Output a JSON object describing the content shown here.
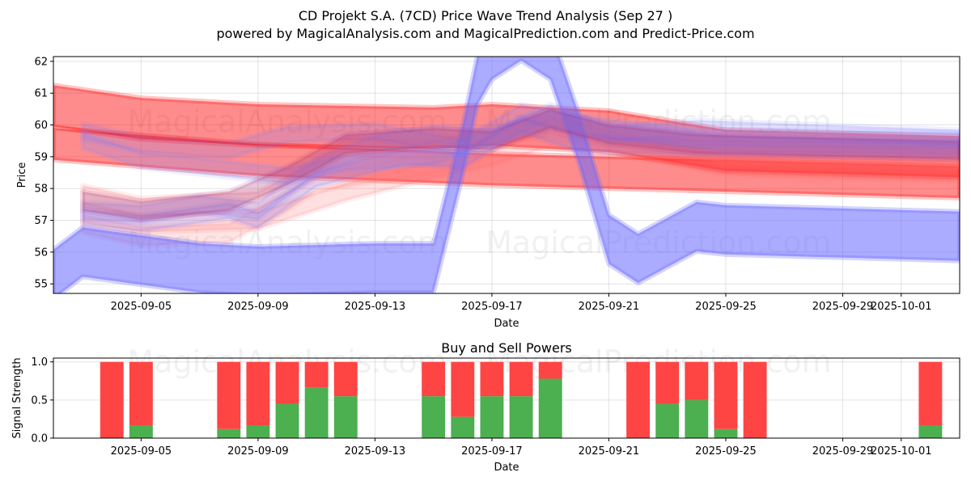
{
  "chart_data": [
    {
      "type": "area",
      "title_line1": "CD Projekt S.A. (7CD) Price Wave Trend Analysis (Sep 27 )",
      "title_line2": "powered by MagicalAnalysis.com and MagicalPrediction.com and Predict-Price.com",
      "xlabel": "Date",
      "ylabel": "Price",
      "ylim": [
        54.7,
        62.15
      ],
      "x_range": [
        "2025-09-02",
        "2025-10-03"
      ],
      "grid": true,
      "yticks": [
        55,
        56,
        57,
        58,
        59,
        60,
        61,
        62
      ],
      "xticks": [
        {
          "date": "2025-09-05",
          "label": "2025-09-05"
        },
        {
          "date": "2025-09-09",
          "label": "2025-09-09"
        },
        {
          "date": "2025-09-13",
          "label": "2025-09-13"
        },
        {
          "date": "2025-09-17",
          "label": "2025-09-17"
        },
        {
          "date": "2025-09-21",
          "label": "2025-09-21"
        },
        {
          "date": "2025-09-25",
          "label": "2025-09-25"
        },
        {
          "date": "2025-09-29",
          "label": "2025-09-29"
        },
        {
          "date": "2025-10-01",
          "label": "2025-10-01"
        }
      ],
      "bands": [
        {
          "name": "red-long-upper",
          "color": "#ff0000",
          "opacity": 0.45,
          "width": 1.3,
          "x": [
            "2025-09-02",
            "2025-09-05",
            "2025-09-09",
            "2025-09-15",
            "2025-09-17",
            "2025-09-21",
            "2025-09-25",
            "2025-10-03"
          ],
          "y": [
            60.6,
            60.2,
            60.0,
            59.9,
            60.0,
            59.8,
            59.2,
            59.0
          ]
        },
        {
          "name": "red-long-lower",
          "color": "#ff0000",
          "opacity": 0.45,
          "width": 1.0,
          "x": [
            "2025-09-02",
            "2025-09-09",
            "2025-09-17",
            "2025-09-21",
            "2025-09-25",
            "2025-10-03"
          ],
          "y": [
            59.4,
            58.9,
            58.6,
            58.5,
            58.4,
            58.2
          ]
        },
        {
          "name": "red-faint-1",
          "color": "#ff6666",
          "opacity": 0.22,
          "width": 0.6,
          "x": [
            "2025-09-03",
            "2025-09-05",
            "2025-09-09",
            "2025-09-11",
            "2025-09-12",
            "2025-09-15",
            "2025-09-17",
            "2025-09-19",
            "2025-09-22",
            "2025-09-25",
            "2025-10-03"
          ],
          "y": [
            57.8,
            57.4,
            57.6,
            58.6,
            59.3,
            59.2,
            59.7,
            60.0,
            59.3,
            58.7,
            58.5
          ]
        },
        {
          "name": "red-faint-2",
          "color": "#ff6666",
          "opacity": 0.2,
          "width": 0.55,
          "x": [
            "2025-09-03",
            "2025-09-05",
            "2025-09-09",
            "2025-09-12",
            "2025-09-15",
            "2025-09-17",
            "2025-09-19",
            "2025-09-22",
            "2025-09-25",
            "2025-10-03"
          ],
          "y": [
            57.2,
            56.9,
            57.0,
            57.9,
            58.6,
            59.0,
            59.6,
            59.2,
            58.8,
            58.6
          ]
        },
        {
          "name": "red-faint-3",
          "color": "#ff7777",
          "opacity": 0.2,
          "width": 0.6,
          "x": [
            "2025-09-03",
            "2025-09-05",
            "2025-09-08",
            "2025-09-10",
            "2025-09-11",
            "2025-09-13",
            "2025-09-16",
            "2025-09-18",
            "2025-09-21",
            "2025-09-25",
            "2025-10-03"
          ],
          "y": [
            56.9,
            56.5,
            56.6,
            57.6,
            58.2,
            58.5,
            58.9,
            59.9,
            59.6,
            59.1,
            58.9
          ]
        },
        {
          "name": "blue-main",
          "color": "#6666ff",
          "opacity": 0.55,
          "width": 1.55,
          "x": [
            "2025-09-02",
            "2025-09-03",
            "2025-09-07",
            "2025-09-09",
            "2025-09-13",
            "2025-09-15",
            "2025-09-16",
            "2025-09-16.5",
            "2025-09-17",
            "2025-09-18",
            "2025-09-19",
            "2025-09-20",
            "2025-09-21",
            "2025-09-22",
            "2025-09-24",
            "2025-09-25",
            "2025-10-03"
          ],
          "y": [
            55.3,
            56.0,
            55.5,
            55.4,
            55.5,
            55.5,
            59.2,
            61.4,
            62.2,
            62.8,
            62.2,
            59.5,
            56.4,
            55.8,
            56.8,
            56.7,
            56.5
          ]
        },
        {
          "name": "blue-faint-1",
          "color": "#8888ff",
          "opacity": 0.25,
          "width": 0.5,
          "x": [
            "2025-09-03",
            "2025-09-05",
            "2025-09-08",
            "2025-09-10",
            "2025-09-12",
            "2025-09-15",
            "2025-09-17",
            "2025-09-19",
            "2025-09-21",
            "2025-09-24",
            "2025-10-03"
          ],
          "y": [
            59.5,
            58.9,
            58.6,
            58.4,
            58.8,
            59.0,
            59.6,
            60.4,
            59.7,
            59.9,
            59.6
          ]
        },
        {
          "name": "blue-faint-2",
          "color": "#8888ff",
          "opacity": 0.25,
          "width": 0.55,
          "x": [
            "2025-09-03",
            "2025-09-05",
            "2025-09-07",
            "2025-09-09",
            "2025-09-11",
            "2025-09-13",
            "2025-09-15",
            "2025-09-17",
            "2025-09-19",
            "2025-09-21",
            "2025-09-24",
            "2025-10-03"
          ],
          "y": [
            57.3,
            57.2,
            57.5,
            57.3,
            58.7,
            59.4,
            59.7,
            59.6,
            60.2,
            59.9,
            59.6,
            59.5
          ]
        },
        {
          "name": "blue-faint-3",
          "color": "#7777ff",
          "opacity": 0.22,
          "width": 0.5,
          "x": [
            "2025-09-03",
            "2025-09-05",
            "2025-09-08",
            "2025-09-09",
            "2025-09-11",
            "2025-09-14",
            "2025-09-16",
            "2025-09-18",
            "2025-09-20",
            "2025-09-24",
            "2025-10-03"
          ],
          "y": [
            57.1,
            56.9,
            57.3,
            57.0,
            58.3,
            59.0,
            58.9,
            60.0,
            59.4,
            59.3,
            59.2
          ]
        },
        {
          "name": "blue-faint-4",
          "color": "#7777ff",
          "opacity": 0.2,
          "width": 0.5,
          "x": [
            "2025-09-03",
            "2025-09-05",
            "2025-09-08",
            "2025-09-10",
            "2025-09-13",
            "2025-09-16",
            "2025-09-18",
            "2025-09-21",
            "2025-09-25",
            "2025-10-03"
          ],
          "y": [
            59.8,
            59.4,
            59.2,
            59.7,
            59.8,
            59.3,
            60.4,
            59.8,
            59.4,
            59.3
          ]
        },
        {
          "name": "purple-mix",
          "color": "#aa3377",
          "opacity": 0.28,
          "width": 0.6,
          "x": [
            "2025-09-03",
            "2025-09-05",
            "2025-09-08",
            "2025-09-10",
            "2025-09-12",
            "2025-09-15",
            "2025-09-17",
            "2025-09-19",
            "2025-09-21",
            "2025-09-24",
            "2025-10-03"
          ],
          "y": [
            57.6,
            57.3,
            57.6,
            58.4,
            59.4,
            59.6,
            59.5,
            60.2,
            59.7,
            59.4,
            59.2
          ]
        }
      ],
      "watermarks": [
        {
          "text": "MagicalAnalysis.com",
          "date": "2025-09-10",
          "value": 60.1
        },
        {
          "text": "MagicalPrediction.com",
          "date": "2025-09-22.7",
          "value": 60.1
        },
        {
          "text": "MagicalAnalysis.com",
          "date": "2025-09-10",
          "value": 56.3
        },
        {
          "text": "MagicalPrediction.com",
          "date": "2025-09-22.7",
          "value": 56.3
        }
      ]
    },
    {
      "type": "bar",
      "title": "Buy and Sell Powers",
      "xlabel": "Date",
      "ylabel": "Signal Strength",
      "ylim": [
        0,
        1.05
      ],
      "yticks": [
        0.0,
        0.5,
        1.0
      ],
      "ytick_labels": [
        "0.0",
        "0.5",
        "1.0"
      ],
      "buy_color": "#4caf50",
      "sell_color": "#ff4444",
      "dates": [
        "2025-09-04",
        "2025-09-05",
        "2025-09-08",
        "2025-09-09",
        "2025-09-10",
        "2025-09-11",
        "2025-09-12",
        "2025-09-15",
        "2025-09-16",
        "2025-09-17",
        "2025-09-18",
        "2025-09-19",
        "2025-09-22",
        "2025-09-23",
        "2025-09-24",
        "2025-09-25",
        "2025-09-26",
        "2025-10-02"
      ],
      "buy": [
        0.0,
        0.17,
        0.12,
        0.17,
        0.45,
        0.66,
        0.55,
        0.55,
        0.28,
        0.55,
        0.55,
        0.78,
        0.0,
        0.45,
        0.5,
        0.12,
        0.0,
        0.17
      ],
      "sell": [
        1.0,
        0.83,
        0.88,
        0.83,
        0.55,
        0.34,
        0.45,
        0.45,
        0.72,
        0.45,
        0.45,
        0.22,
        1.0,
        0.55,
        0.5,
        0.88,
        1.0,
        0.83
      ],
      "watermarks": [
        {
          "text": "MagicalAnalysis.com",
          "date": "2025-09-10",
          "value": 1.0
        },
        {
          "text": "MagicalPrediction.com",
          "date": "2025-09-22.7",
          "value": 1.0
        }
      ]
    }
  ]
}
